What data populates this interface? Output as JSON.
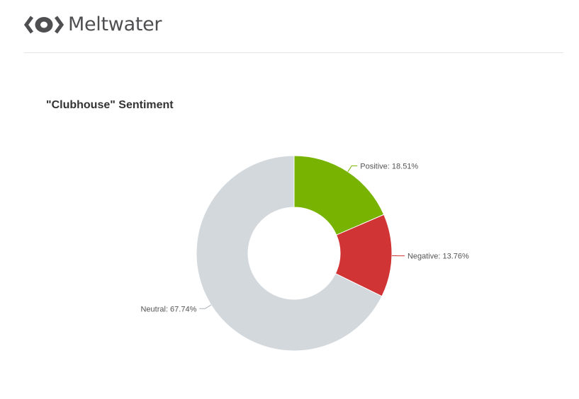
{
  "brand": {
    "name": "Meltwater",
    "logo_icon": "meltwater-eye-logo-icon",
    "color": "#4f4f52"
  },
  "chart_data": {
    "type": "pie",
    "title": "\"Clubhouse\" Sentiment",
    "donut": true,
    "slices": [
      {
        "name": "Positive",
        "value": 18.51,
        "label": "Positive: 18.51%",
        "color": "#77b300"
      },
      {
        "name": "Negative",
        "value": 13.76,
        "label": "Negative: 13.76%",
        "color": "#d03434"
      },
      {
        "name": "Neutral",
        "value": 67.74,
        "label": "Neutral: 67.74%",
        "color": "#d3d8dd"
      }
    ],
    "label_placement": "outside with leader lines"
  }
}
